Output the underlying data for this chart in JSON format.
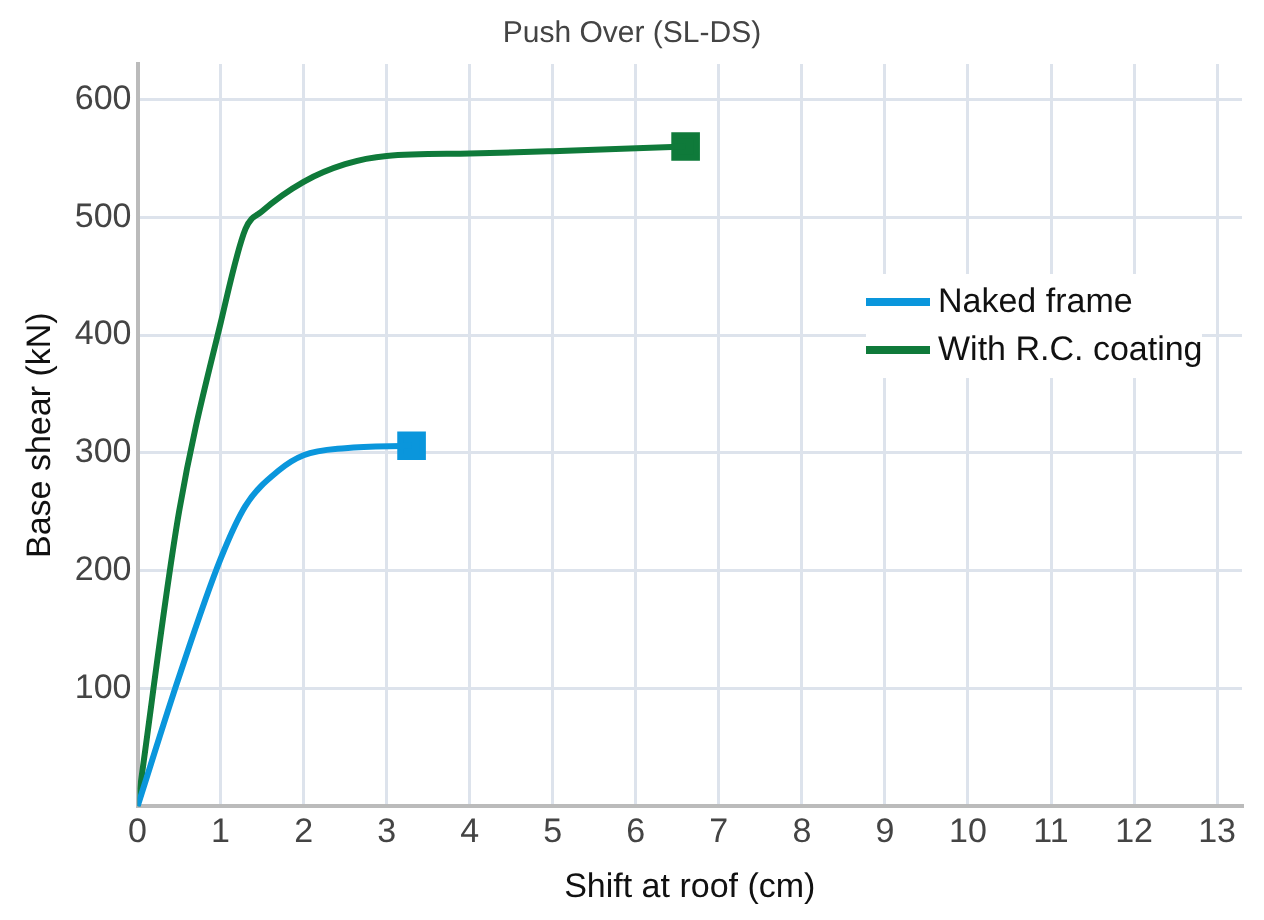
{
  "chart_data": {
    "type": "line",
    "title": "Push Over (SL-DS)",
    "xlabel": "Shift at roof (cm)",
    "ylabel": "Base shear (kN)",
    "xlim": [
      0,
      13.3
    ],
    "xticks": [
      0,
      1,
      2,
      3,
      4,
      5,
      6,
      7,
      8,
      9,
      10,
      11,
      12,
      13
    ],
    "ylim": [
      0,
      630
    ],
    "yticks": [
      {
        "value": 0,
        "label": null
      },
      100,
      200,
      300,
      400,
      500,
      600
    ],
    "grid": true,
    "legend": "right",
    "marker": "none",
    "line_style": "solid",
    "series": [
      {
        "name": "Naked frame",
        "color": "#0a96dc",
        "x": [
          0,
          0.5,
          1,
          1.3,
          1.7,
          2,
          2.5,
          3.3
        ],
        "values": [
          0,
          110,
          210,
          255,
          285,
          298,
          304,
          306
        ]
      },
      {
        "name": "With R.C. coating",
        "color": "#0f7a3a",
        "x": [
          0,
          0.5,
          1,
          1.3,
          1.5,
          2,
          2.5,
          3,
          4,
          5,
          6.6
        ],
        "values": [
          0,
          250,
          410,
          490,
          505,
          530,
          545,
          552,
          554,
          556,
          560
        ]
      },
      {
        "type": "scatter",
        "marker": "square",
        "color": "#0a96dc",
        "x": [
          3.3
        ],
        "values": [
          306
        ]
      },
      {
        "type": "scatter",
        "marker": "square",
        "color": "#0f7a3a",
        "x": [
          6.6
        ],
        "values": [
          560
        ]
      }
    ]
  }
}
